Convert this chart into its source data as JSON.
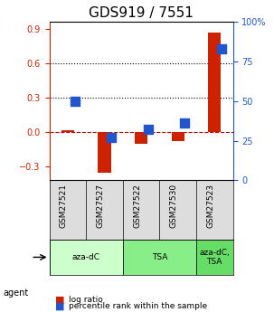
{
  "title": "GDS919 / 7551",
  "samples": [
    "GSM27521",
    "GSM27527",
    "GSM27522",
    "GSM27530",
    "GSM27523"
  ],
  "log_ratio": [
    0.02,
    -0.35,
    -0.1,
    -0.08,
    0.87
  ],
  "percentile_rank": [
    50.0,
    27.0,
    32.0,
    36.0,
    83.0
  ],
  "bar_color": "#cc2200",
  "dot_color": "#2255cc",
  "groups": [
    {
      "label": "aza-dC",
      "samples": [
        0,
        1
      ],
      "color": "#ccffcc"
    },
    {
      "label": "TSA",
      "samples": [
        2,
        3
      ],
      "color": "#88ee88"
    },
    {
      "label": "aza-dC,\nTSA",
      "samples": [
        4
      ],
      "color": "#66dd66"
    }
  ],
  "ylim_left": [
    -0.42,
    0.96
  ],
  "ylim_right": [
    0,
    100
  ],
  "yticks_left": [
    -0.3,
    0.0,
    0.3,
    0.6,
    0.9
  ],
  "yticks_right": [
    0,
    25,
    50,
    75,
    100
  ],
  "hlines": [
    0.0,
    0.3,
    0.6
  ],
  "hline_styles": [
    "--",
    ":",
    ":"
  ],
  "hline_colors": [
    "#cc0000",
    "#000000",
    "#000000"
  ],
  "bar_width": 0.35,
  "dot_size": 60,
  "legend_items": [
    "log ratio",
    "percentile rank within the sample"
  ],
  "legend_colors": [
    "#cc2200",
    "#2255cc"
  ],
  "agent_label": "agent",
  "background_color": "#ffffff",
  "plot_bg": "#ffffff",
  "tick_label_fontsize": 7,
  "title_fontsize": 11
}
